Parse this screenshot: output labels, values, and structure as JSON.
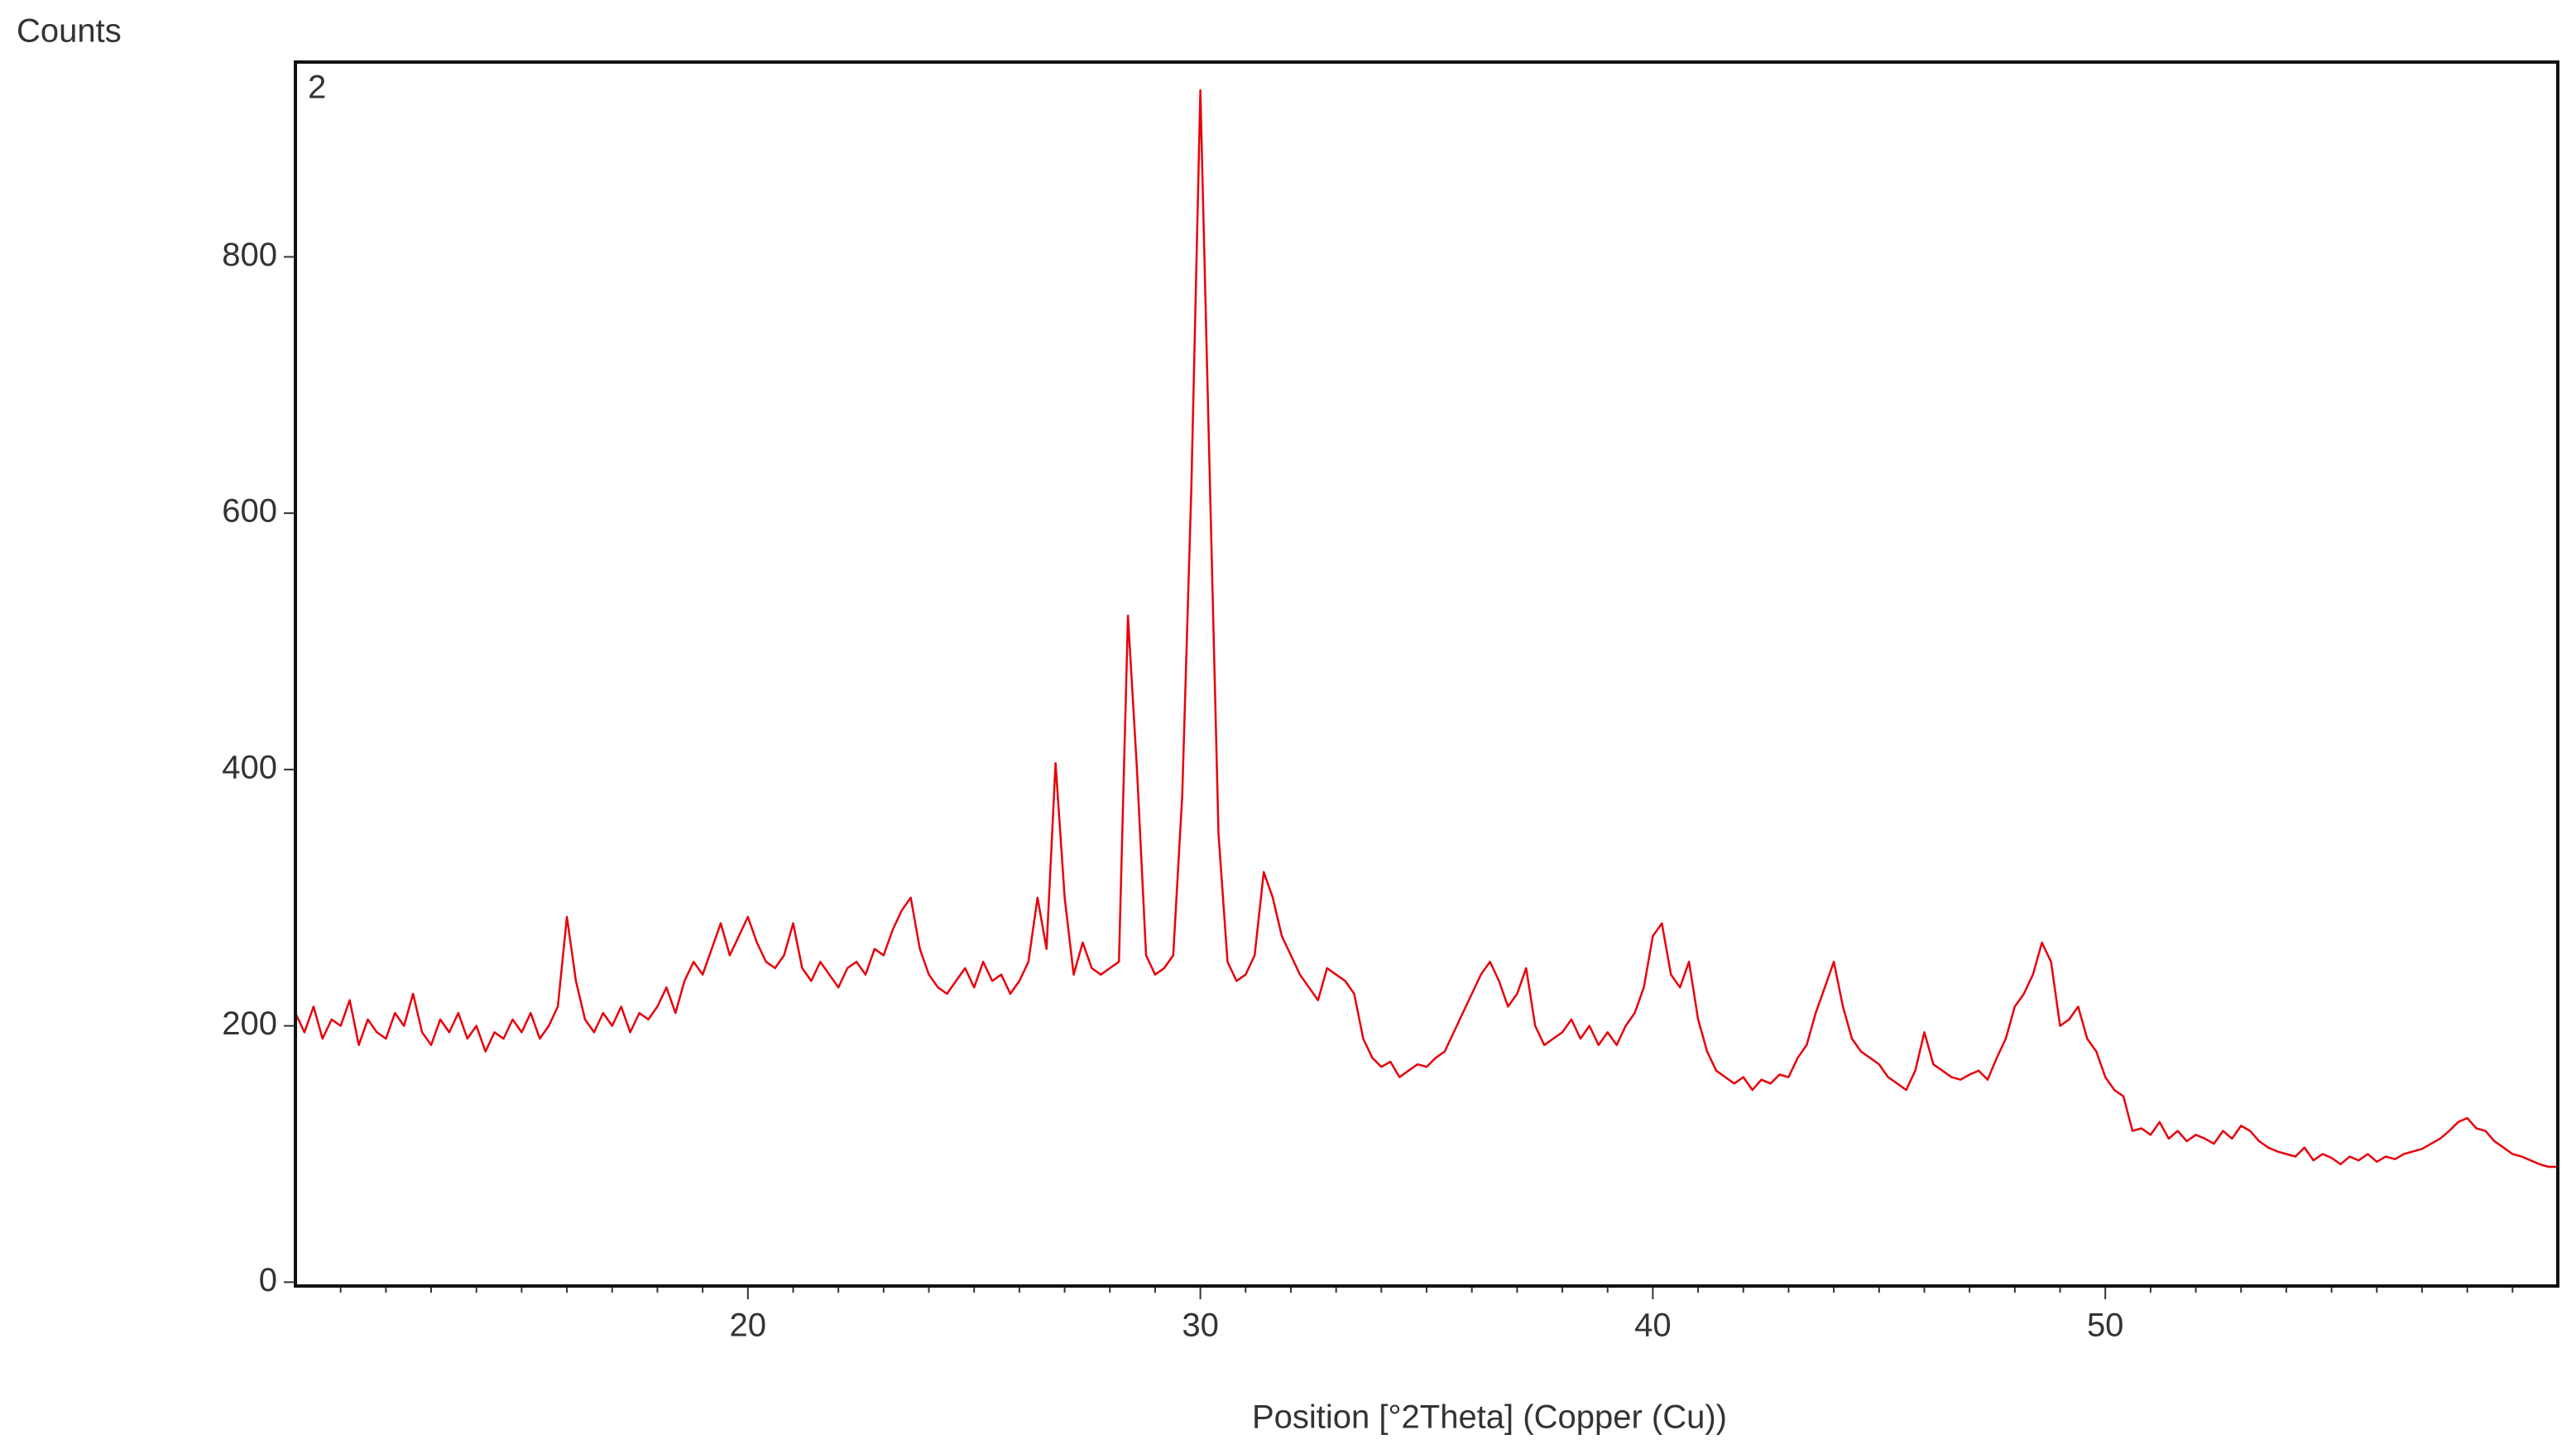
{
  "chart_data": {
    "type": "line",
    "y_axis_title": "Counts",
    "x_axis_title": "Position [°2Theta] (Copper (Cu))",
    "xlim": [
      10,
      60
    ],
    "ylim": [
      -3,
      952
    ],
    "xticks": [
      20,
      30,
      40,
      50
    ],
    "xminorticks": [
      11,
      12,
      13,
      14,
      15,
      16,
      17,
      18,
      19,
      21,
      22,
      23,
      24,
      25,
      26,
      27,
      28,
      29,
      31,
      32,
      33,
      34,
      35,
      36,
      37,
      38,
      39,
      41,
      42,
      43,
      44,
      45,
      46,
      47,
      48,
      49,
      51,
      52,
      53,
      54,
      55,
      56,
      57,
      58,
      59
    ],
    "yticks": [
      0,
      200,
      400,
      600,
      800
    ],
    "x": [
      10,
      10.2,
      10.4,
      10.6,
      10.8,
      11,
      11.2,
      11.4,
      11.6,
      11.8,
      12,
      12.2,
      12.4,
      12.6,
      12.8,
      13,
      13.2,
      13.4,
      13.6,
      13.8,
      14,
      14.2,
      14.4,
      14.6,
      14.8,
      15,
      15.2,
      15.4,
      15.6,
      15.8,
      16,
      16.2,
      16.4,
      16.6,
      16.8,
      17,
      17.2,
      17.4,
      17.6,
      17.8,
      18,
      18.2,
      18.4,
      18.6,
      18.8,
      19,
      19.2,
      19.4,
      19.6,
      19.8,
      20,
      20.2,
      20.4,
      20.6,
      20.8,
      21,
      21.2,
      21.4,
      21.6,
      21.8,
      22,
      22.2,
      22.4,
      22.6,
      22.8,
      23,
      23.2,
      23.4,
      23.6,
      23.8,
      24,
      24.2,
      24.4,
      24.6,
      24.8,
      25,
      25.2,
      25.4,
      25.6,
      25.8,
      26,
      26.2,
      26.4,
      26.6,
      26.8,
      27,
      27.2,
      27.4,
      27.6,
      27.8,
      28,
      28.2,
      28.4,
      28.6,
      28.8,
      29,
      29.2,
      29.4,
      29.6,
      29.8,
      30,
      30.2,
      30.4,
      30.6,
      30.8,
      31,
      31.2,
      31.4,
      31.6,
      31.8,
      32,
      32.2,
      32.4,
      32.6,
      32.8,
      33,
      33.2,
      33.4,
      33.6,
      33.8,
      34,
      34.2,
      34.4,
      34.6,
      34.8,
      35,
      35.2,
      35.4,
      35.6,
      35.8,
      36,
      36.2,
      36.4,
      36.6,
      36.8,
      37,
      37.2,
      37.4,
      37.6,
      37.8,
      38,
      38.2,
      38.4,
      38.6,
      38.8,
      39,
      39.2,
      39.4,
      39.6,
      39.8,
      40,
      40.2,
      40.4,
      40.6,
      40.8,
      41,
      41.2,
      41.4,
      41.6,
      41.8,
      42,
      42.2,
      42.4,
      42.6,
      42.8,
      43,
      43.2,
      43.4,
      43.6,
      43.8,
      44,
      44.2,
      44.4,
      44.6,
      44.8,
      45,
      45.2,
      45.4,
      45.6,
      45.8,
      46,
      46.2,
      46.4,
      46.6,
      46.8,
      47,
      47.2,
      47.4,
      47.6,
      47.8,
      48,
      48.2,
      48.4,
      48.6,
      48.8,
      49,
      49.2,
      49.4,
      49.6,
      49.8,
      50,
      50.2,
      50.4,
      50.6,
      50.8,
      51,
      51.2,
      51.4,
      51.6,
      51.8,
      52,
      52.2,
      52.4,
      52.6,
      52.8,
      53,
      53.2,
      53.4,
      53.6,
      53.8,
      54,
      54.2,
      54.4,
      54.6,
      54.8,
      55,
      55.2,
      55.4,
      55.6,
      55.8,
      56,
      56.2,
      56.4,
      56.6,
      56.8,
      57,
      57.2,
      57.4,
      57.6,
      57.8,
      58,
      58.2,
      58.4,
      58.6,
      58.8,
      59,
      59.2,
      59.4,
      59.6,
      59.8,
      60
    ],
    "series": [
      {
        "name": "2",
        "color": "#e8000b",
        "values": [
          210,
          195,
          215,
          190,
          205,
          200,
          220,
          185,
          205,
          195,
          190,
          210,
          200,
          225,
          195,
          185,
          205,
          195,
          210,
          190,
          200,
          180,
          195,
          190,
          205,
          195,
          210,
          190,
          200,
          215,
          285,
          235,
          205,
          195,
          210,
          200,
          215,
          195,
          210,
          205,
          215,
          230,
          210,
          235,
          250,
          240,
          260,
          280,
          255,
          270,
          285,
          265,
          250,
          245,
          255,
          280,
          245,
          235,
          250,
          240,
          230,
          245,
          250,
          240,
          260,
          255,
          275,
          290,
          300,
          260,
          240,
          230,
          225,
          235,
          245,
          230,
          250,
          235,
          240,
          225,
          235,
          250,
          300,
          260,
          405,
          300,
          240,
          265,
          245,
          240,
          245,
          250,
          520,
          400,
          255,
          240,
          245,
          255,
          380,
          620,
          930,
          640,
          350,
          250,
          235,
          240,
          255,
          320,
          300,
          270,
          255,
          240,
          230,
          220,
          245,
          240,
          235,
          225,
          190,
          175,
          168,
          172,
          160,
          165,
          170,
          168,
          175,
          180,
          195,
          210,
          225,
          240,
          250,
          235,
          215,
          225,
          245,
          200,
          185,
          190,
          195,
          205,
          190,
          200,
          185,
          195,
          185,
          200,
          210,
          230,
          270,
          280,
          240,
          230,
          250,
          205,
          180,
          165,
          160,
          155,
          160,
          150,
          158,
          155,
          162,
          160,
          175,
          185,
          210,
          230,
          250,
          215,
          190,
          180,
          175,
          170,
          160,
          155,
          150,
          165,
          195,
          170,
          165,
          160,
          158,
          162,
          165,
          158,
          175,
          190,
          215,
          225,
          240,
          265,
          250,
          200,
          205,
          215,
          190,
          180,
          160,
          150,
          145,
          118,
          120,
          115,
          125,
          112,
          118,
          110,
          115,
          112,
          108,
          118,
          112,
          122,
          118,
          110,
          105,
          102,
          100,
          98,
          105,
          95,
          100,
          97,
          92,
          98,
          95,
          100,
          94,
          98,
          96,
          100,
          102,
          104,
          108,
          112,
          118,
          125,
          128,
          120,
          118,
          110,
          105,
          100,
          98,
          95,
          92,
          90,
          90
        ]
      }
    ]
  }
}
